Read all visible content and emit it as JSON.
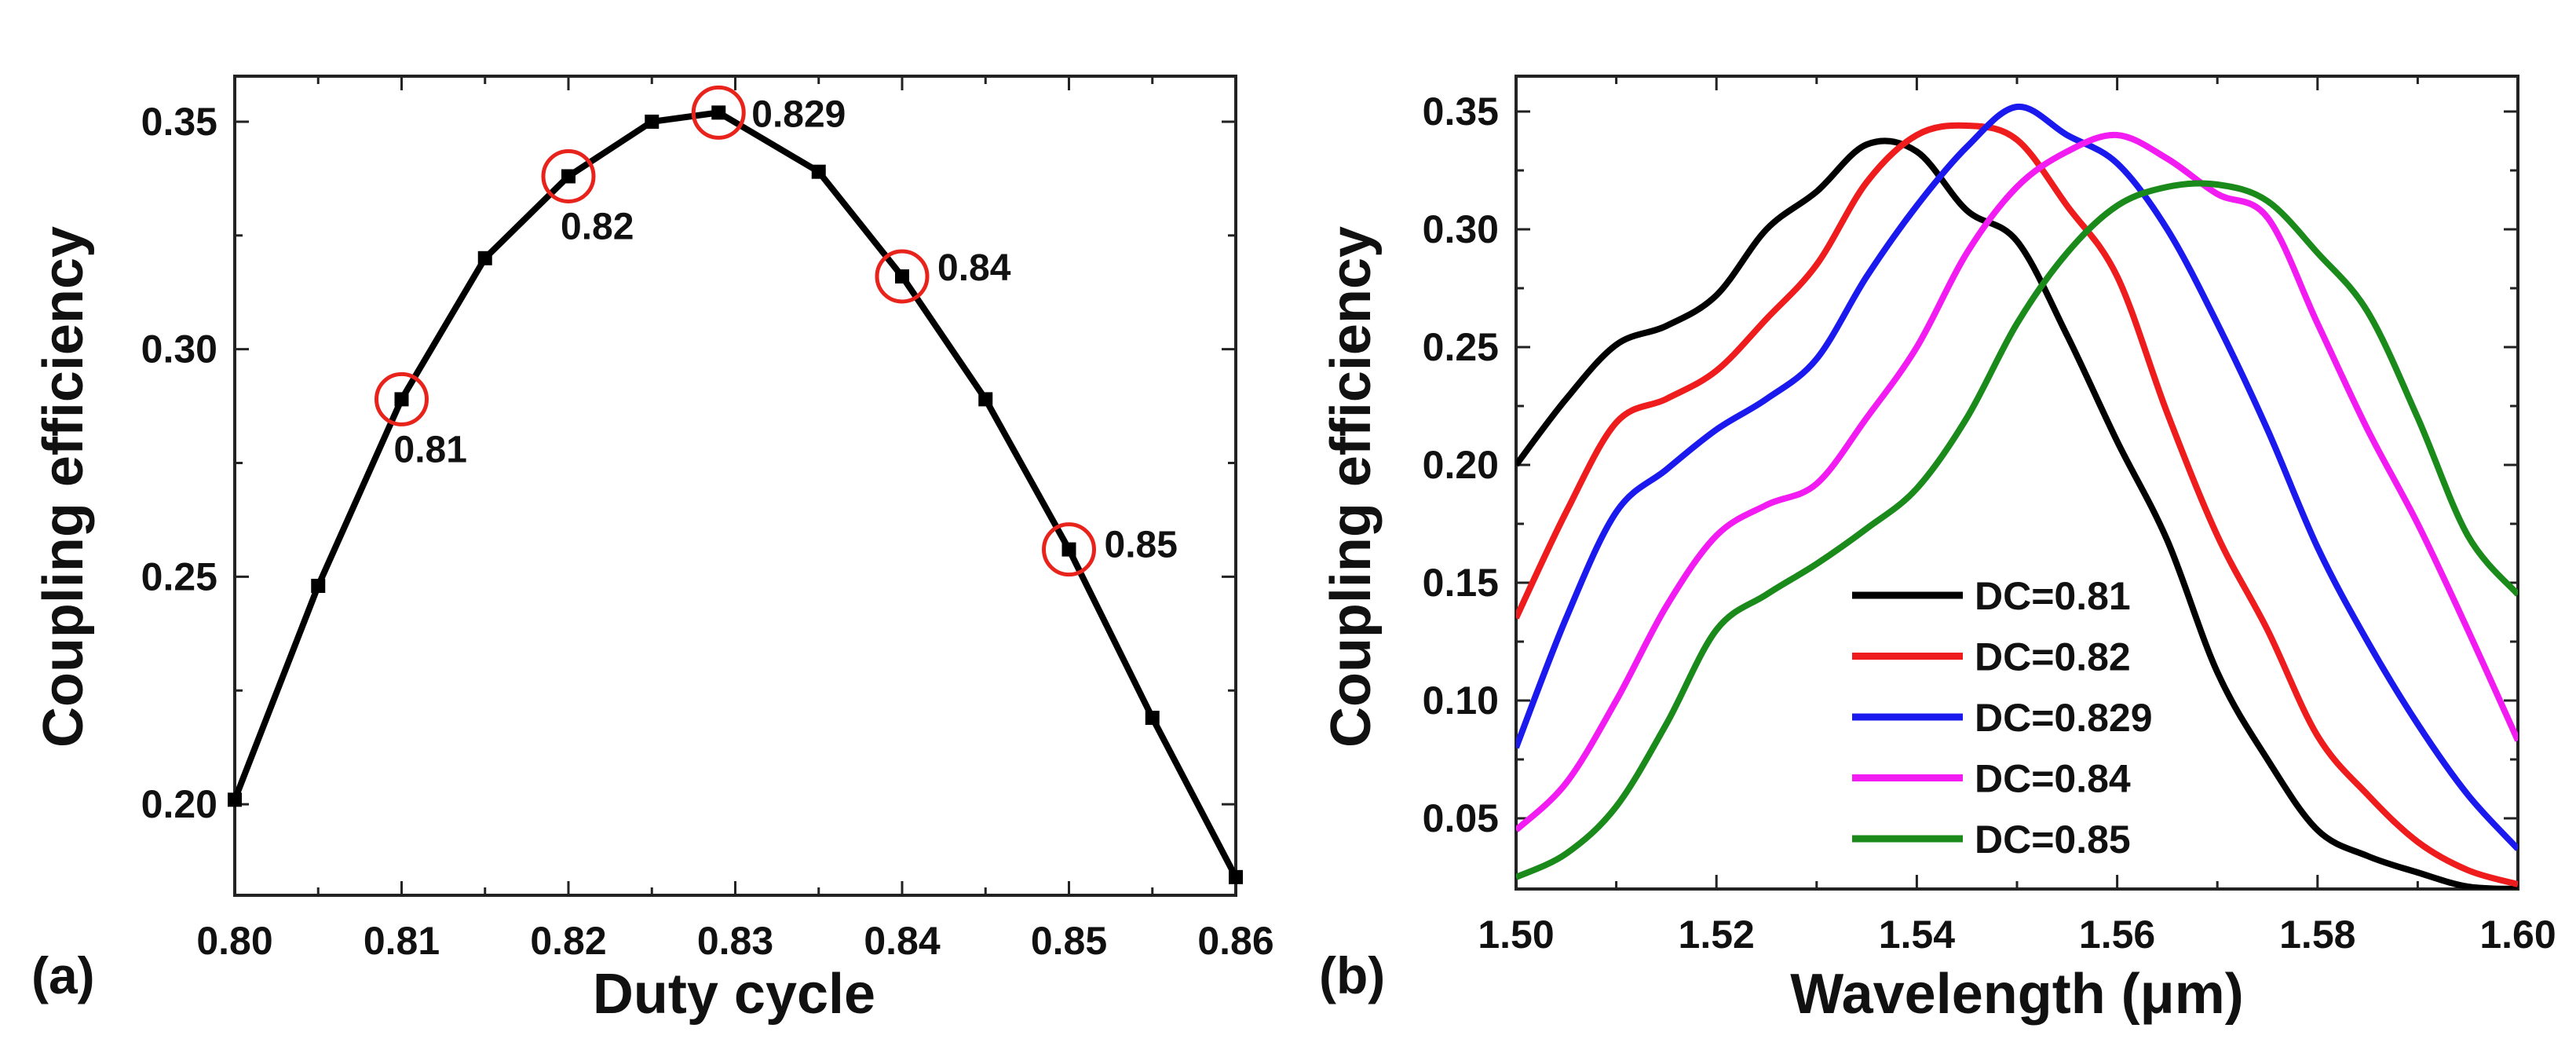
{
  "chart_data": [
    {
      "type": "line",
      "panel_label": "(a)",
      "xlabel": "Duty cycle",
      "ylabel": "Coupling efficiency",
      "xlim": [
        0.8,
        0.86
      ],
      "ylim": [
        0.18,
        0.36
      ],
      "xticks": [
        "0.80",
        "0.81",
        "0.82",
        "0.83",
        "0.84",
        "0.85",
        "0.86"
      ],
      "yticks": [
        "0.20",
        "0.25",
        "0.30",
        "0.35"
      ],
      "grid": false,
      "series": [
        {
          "name": "Coupling efficiency",
          "color": "#000000",
          "marker": "square",
          "x": [
            0.8,
            0.805,
            0.81,
            0.815,
            0.82,
            0.825,
            0.829,
            0.835,
            0.84,
            0.845,
            0.85,
            0.855,
            0.86
          ],
          "y": [
            0.201,
            0.248,
            0.289,
            0.32,
            0.338,
            0.35,
            0.352,
            0.339,
            0.316,
            0.289,
            0.256,
            0.219,
            0.184
          ]
        }
      ],
      "annotations": [
        {
          "text": "0.81",
          "x": 0.81,
          "y": 0.289,
          "circle_color": "#e8231c"
        },
        {
          "text": "0.82",
          "x": 0.82,
          "y": 0.338,
          "circle_color": "#e8231c"
        },
        {
          "text": "0.829",
          "x": 0.829,
          "y": 0.352,
          "circle_color": "#e8231c"
        },
        {
          "text": "0.84",
          "x": 0.84,
          "y": 0.316,
          "circle_color": "#e8231c"
        },
        {
          "text": "0.85",
          "x": 0.85,
          "y": 0.256,
          "circle_color": "#e8231c"
        }
      ]
    },
    {
      "type": "line",
      "panel_label": "(b)",
      "xlabel": "Wavelength (μm)",
      "ylabel": "Coupling efficiency",
      "xlim": [
        1.5,
        1.6
      ],
      "ylim": [
        0.02,
        0.365
      ],
      "xticks": [
        "1.50",
        "1.52",
        "1.54",
        "1.56",
        "1.58",
        "1.60"
      ],
      "yticks": [
        "0.05",
        "0.10",
        "0.15",
        "0.20",
        "0.25",
        "0.30",
        "0.35"
      ],
      "grid": false,
      "legend_position": "bottom-center",
      "x": [
        1.5,
        1.505,
        1.51,
        1.515,
        1.52,
        1.525,
        1.53,
        1.535,
        1.54,
        1.545,
        1.55,
        1.555,
        1.56,
        1.565,
        1.57,
        1.575,
        1.58,
        1.585,
        1.59,
        1.595,
        1.6
      ],
      "series": [
        {
          "name": "DC=0.81",
          "color": "#000000",
          "values": [
            0.2,
            0.228,
            0.251,
            0.259,
            0.272,
            0.3,
            0.316,
            0.336,
            0.333,
            0.308,
            0.295,
            0.255,
            0.21,
            0.168,
            0.112,
            0.075,
            0.045,
            0.034,
            0.027,
            0.021,
            0.02
          ]
        },
        {
          "name": "DC=0.82",
          "color": "#ee1c1c",
          "values": [
            0.135,
            0.18,
            0.218,
            0.228,
            0.24,
            0.262,
            0.285,
            0.32,
            0.34,
            0.344,
            0.338,
            0.31,
            0.28,
            0.222,
            0.17,
            0.13,
            0.085,
            0.06,
            0.04,
            0.028,
            0.022
          ]
        },
        {
          "name": "DC=0.829",
          "color": "#1a1aee",
          "values": [
            0.08,
            0.135,
            0.18,
            0.198,
            0.215,
            0.228,
            0.245,
            0.28,
            0.31,
            0.335,
            0.352,
            0.34,
            0.328,
            0.3,
            0.26,
            0.215,
            0.165,
            0.125,
            0.09,
            0.06,
            0.037
          ]
        },
        {
          "name": "DC=0.84",
          "color": "#f21cf2",
          "values": [
            0.045,
            0.065,
            0.1,
            0.14,
            0.17,
            0.183,
            0.192,
            0.22,
            0.25,
            0.29,
            0.318,
            0.333,
            0.34,
            0.33,
            0.315,
            0.305,
            0.26,
            0.215,
            0.175,
            0.13,
            0.083
          ]
        },
        {
          "name": "DC=0.85",
          "color": "#1a8a1a",
          "values": [
            0.025,
            0.035,
            0.055,
            0.09,
            0.13,
            0.145,
            0.158,
            0.173,
            0.19,
            0.22,
            0.26,
            0.29,
            0.31,
            0.318,
            0.319,
            0.312,
            0.29,
            0.265,
            0.22,
            0.17,
            0.145
          ]
        }
      ]
    }
  ]
}
